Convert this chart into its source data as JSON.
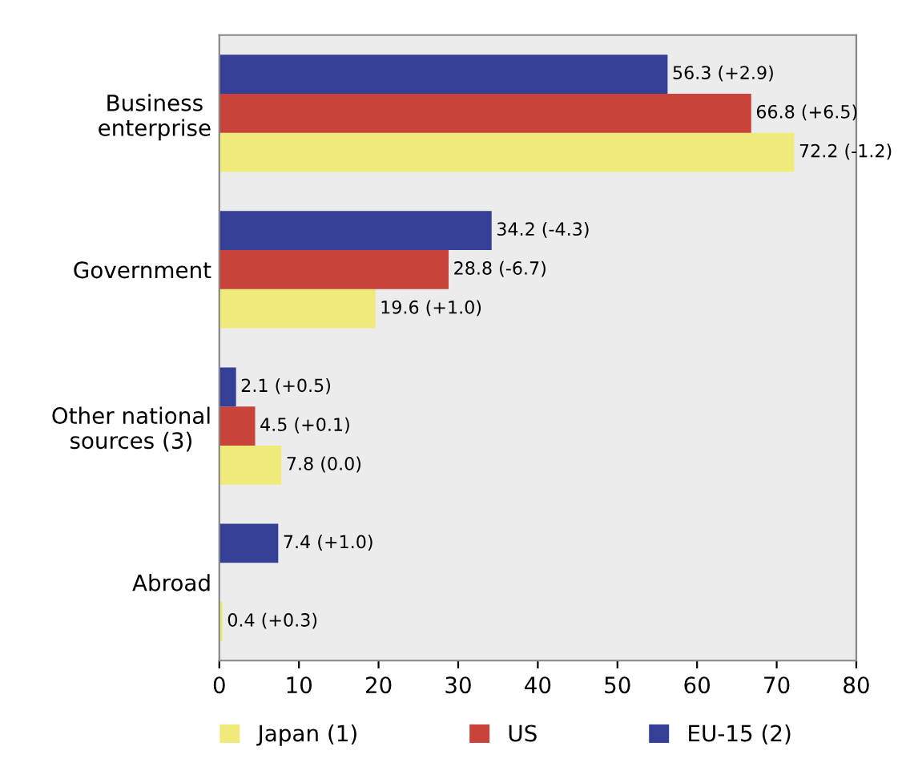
{
  "chart_data": {
    "type": "bar",
    "orientation": "horizontal",
    "categories": [
      "Business\nenterprise",
      "Government",
      "Other national\nsources (3)",
      "Abroad"
    ],
    "series": [
      {
        "name": "Japan (1)",
        "color": "#f0ea7a",
        "values": [
          72.2,
          19.6,
          7.8,
          0.4
        ],
        "value_labels": [
          "72.2 (-1.2)",
          "19.6 (+1.0)",
          "7.8 (0.0)",
          "0.4 (+0.3)"
        ]
      },
      {
        "name": "US",
        "color": "#c9433a",
        "values": [
          66.8,
          28.8,
          4.5,
          null
        ],
        "value_labels": [
          "66.8 (+6.5)",
          "28.8 (-6.7)",
          "4.5 (+0.1)",
          null
        ]
      },
      {
        "name": "EU-15 (2)",
        "color": "#343f97",
        "values": [
          56.3,
          34.2,
          2.1,
          7.4
        ],
        "value_labels": [
          "56.3 (+2.9)",
          "34.2 (-4.3)",
          "2.1 (+0.5)",
          "7.4 (+1.0)"
        ]
      }
    ],
    "xlim": [
      0,
      80
    ],
    "xticks": [
      0,
      10,
      20,
      30,
      40,
      50,
      60,
      70,
      80
    ],
    "grid": false,
    "legend": "bottom"
  }
}
